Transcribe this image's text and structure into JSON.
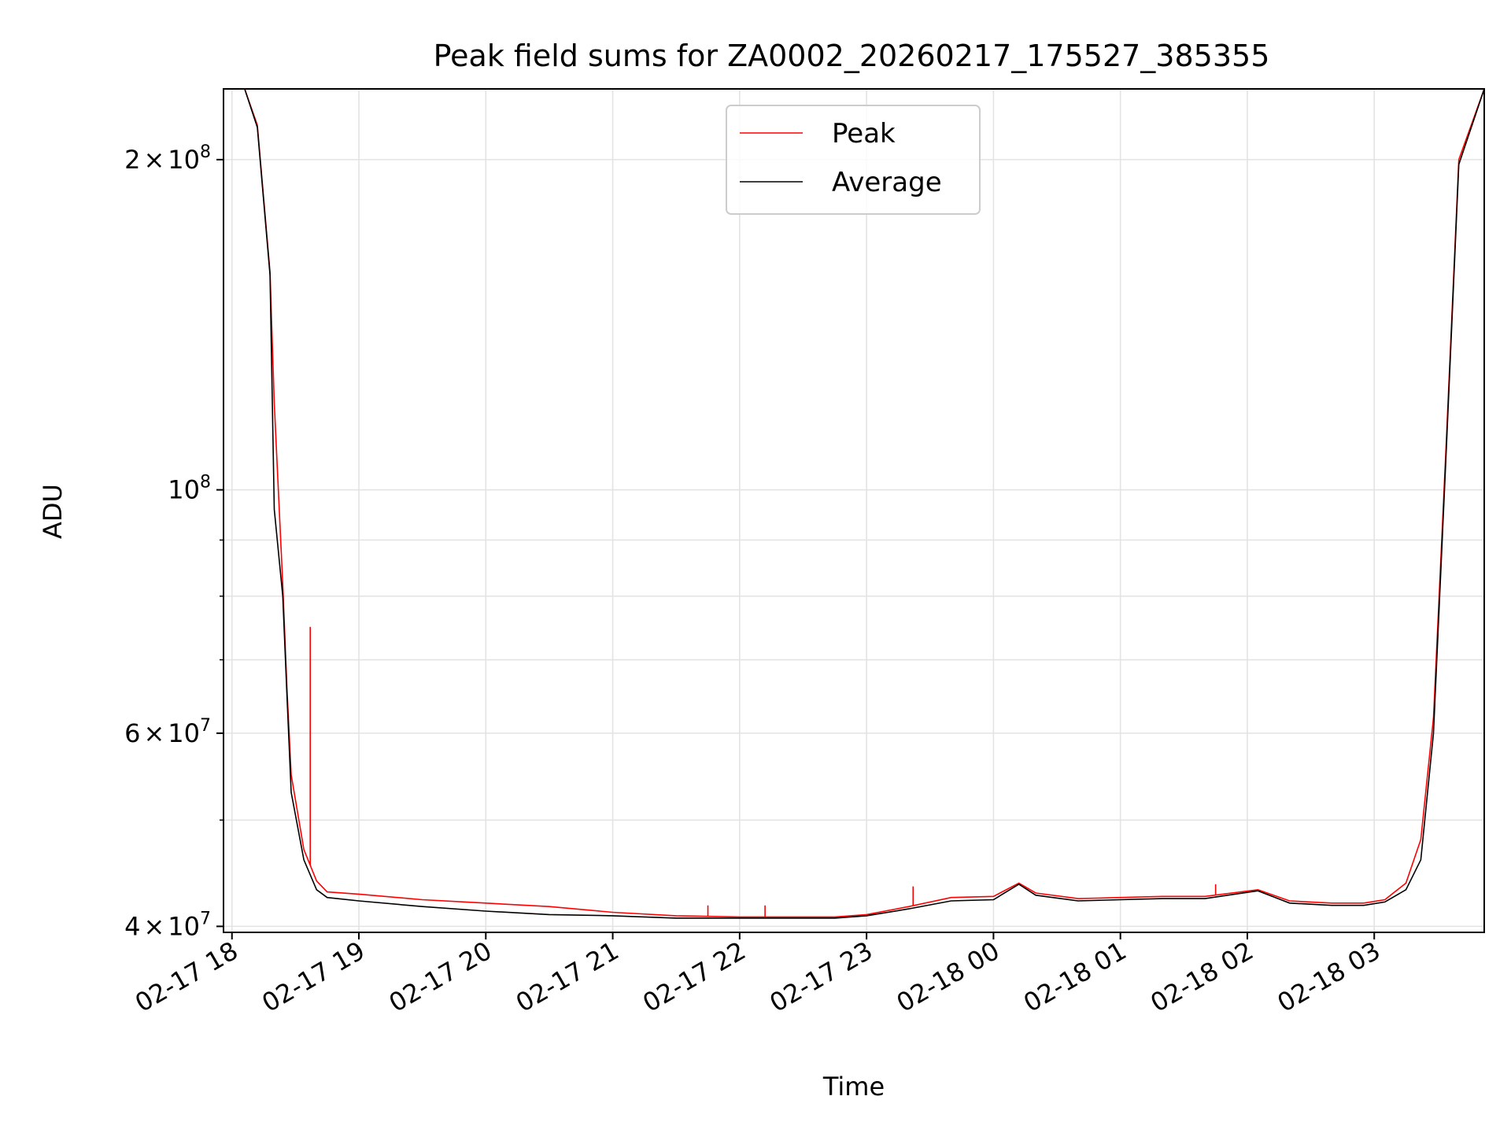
{
  "chart_data": {
    "type": "line",
    "title": "Peak field sums for ZA0002_20260217_175527_385355",
    "xlabel": "Time",
    "ylabel": "ADU",
    "yscale": "log",
    "ylim": [
      39500000,
      232000000
    ],
    "xlim": [
      "2026-02-17 17:56",
      "2026-02-18 03:52"
    ],
    "grid": true,
    "legend_position": "top-center",
    "x_ticks": [
      "02-17 18",
      "02-17 19",
      "02-17 20",
      "02-17 21",
      "02-17 22",
      "02-17 23",
      "02-18 00",
      "02-18 01",
      "02-18 02",
      "02-18 03"
    ],
    "y_tick_labels": [
      {
        "value": 40000000,
        "mantissa": "4",
        "exp": "7"
      },
      {
        "value": 60000000,
        "mantissa": "6",
        "exp": "7"
      },
      {
        "value": 100000000,
        "mantissa": "",
        "exp": "8"
      },
      {
        "value": 200000000,
        "mantissa": "2",
        "exp": "8"
      }
    ],
    "y_minor_ticks": [
      50000000,
      70000000,
      80000000,
      90000000
    ],
    "series": [
      {
        "name": "Peak",
        "color": "#ff0000",
        "x": [
          "2026-02-17 17:56",
          "2026-02-17 18:06",
          "2026-02-17 18:12",
          "2026-02-17 18:18",
          "2026-02-17 18:20",
          "2026-02-17 18:24",
          "2026-02-17 18:26",
          "2026-02-17 18:28",
          "2026-02-17 18:34",
          "2026-02-17 18:40",
          "2026-02-17 18:45",
          "2026-02-17 19:00",
          "2026-02-17 19:30",
          "2026-02-17 20:00",
          "2026-02-17 20:30",
          "2026-02-17 21:00",
          "2026-02-17 21:30",
          "2026-02-17 22:00",
          "2026-02-17 22:30",
          "2026-02-17 22:45",
          "2026-02-17 23:00",
          "2026-02-17 23:20",
          "2026-02-17 23:40",
          "2026-02-18 00:00",
          "2026-02-18 00:12",
          "2026-02-18 00:20",
          "2026-02-18 00:40",
          "2026-02-18 01:00",
          "2026-02-18 01:20",
          "2026-02-18 01:40",
          "2026-02-18 02:05",
          "2026-02-18 02:20",
          "2026-02-18 02:40",
          "2026-02-18 02:55",
          "2026-02-18 03:05",
          "2026-02-18 03:15",
          "2026-02-18 03:22",
          "2026-02-18 03:28",
          "2026-02-18 03:34",
          "2026-02-18 03:40",
          "2026-02-18 03:52"
        ],
        "values": [
          232000000,
          232000000,
          215000000,
          158000000,
          120000000,
          82000000,
          66000000,
          55000000,
          47000000,
          44000000,
          43000000,
          42800000,
          42300000,
          42000000,
          41700000,
          41200000,
          40900000,
          40800000,
          40800000,
          40800000,
          41000000,
          41700000,
          42500000,
          42600000,
          43800000,
          42900000,
          42400000,
          42500000,
          42600000,
          42600000,
          43200000,
          42200000,
          42000000,
          42000000,
          42300000,
          43800000,
          48000000,
          62000000,
          110000000,
          200000000,
          232000000
        ],
        "spikes": [
          {
            "x": "2026-02-17 18:37",
            "value": 75000000
          },
          {
            "x": "2026-02-17 21:45",
            "value": 41800000
          },
          {
            "x": "2026-02-17 22:12",
            "value": 41800000
          },
          {
            "x": "2026-02-17 23:22",
            "value": 43500000
          },
          {
            "x": "2026-02-18 01:45",
            "value": 43700000
          }
        ]
      },
      {
        "name": "Average",
        "color": "#000000",
        "x": [
          "2026-02-17 17:56",
          "2026-02-17 18:06",
          "2026-02-17 18:12",
          "2026-02-17 18:18",
          "2026-02-17 18:20",
          "2026-02-17 18:24",
          "2026-02-17 18:26",
          "2026-02-17 18:28",
          "2026-02-17 18:34",
          "2026-02-17 18:40",
          "2026-02-17 18:45",
          "2026-02-17 19:00",
          "2026-02-17 19:30",
          "2026-02-17 20:00",
          "2026-02-17 20:30",
          "2026-02-17 21:00",
          "2026-02-17 21:30",
          "2026-02-17 22:00",
          "2026-02-17 22:30",
          "2026-02-17 22:45",
          "2026-02-17 23:00",
          "2026-02-17 23:20",
          "2026-02-17 23:40",
          "2026-02-18 00:00",
          "2026-02-18 00:12",
          "2026-02-18 00:20",
          "2026-02-18 00:40",
          "2026-02-18 01:00",
          "2026-02-18 01:20",
          "2026-02-18 01:40",
          "2026-02-18 02:05",
          "2026-02-18 02:20",
          "2026-02-18 02:40",
          "2026-02-18 02:55",
          "2026-02-18 03:05",
          "2026-02-18 03:15",
          "2026-02-18 03:22",
          "2026-02-18 03:28",
          "2026-02-18 03:34",
          "2026-02-18 03:40",
          "2026-02-18 03:52"
        ],
        "values": [
          232000000,
          232000000,
          214000000,
          157000000,
          96000000,
          80000000,
          65000000,
          53000000,
          46000000,
          43200000,
          42500000,
          42200000,
          41700000,
          41300000,
          41000000,
          40900000,
          40700000,
          40700000,
          40700000,
          40700000,
          40900000,
          41500000,
          42200000,
          42300000,
          43700000,
          42700000,
          42200000,
          42300000,
          42400000,
          42400000,
          43100000,
          42000000,
          41800000,
          41800000,
          42100000,
          43200000,
          46000000,
          60000000,
          108000000,
          198000000,
          232000000
        ]
      }
    ]
  }
}
